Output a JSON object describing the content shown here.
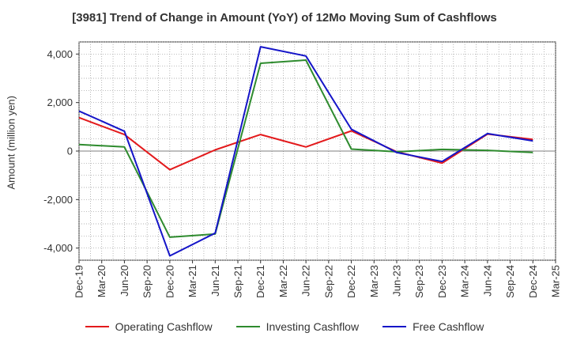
{
  "chart_data": {
    "type": "line",
    "title": "[3981]  Trend of Change in Amount (YoY) of 12Mo Moving Sum of Cashflows",
    "xlabel": "",
    "ylabel": "Amount (million yen)",
    "ylim": [
      -4500,
      4500
    ],
    "yticks": [
      4000,
      2000,
      0,
      -2000,
      -4000
    ],
    "ytick_labels": [
      "4,000",
      "2,000",
      "0",
      "-2,000",
      "-4,000"
    ],
    "categories": [
      "Dec-19",
      "Mar-20",
      "Jun-20",
      "Sep-20",
      "Dec-20",
      "Mar-21",
      "Jun-21",
      "Sep-21",
      "Dec-21",
      "Mar-22",
      "Jun-22",
      "Sep-22",
      "Dec-22",
      "Mar-23",
      "Jun-23",
      "Sep-23",
      "Dec-23",
      "Mar-24",
      "Jun-24",
      "Sep-24",
      "Dec-24",
      "Mar-25"
    ],
    "grid": true,
    "legend_position": "bottom",
    "series": [
      {
        "name": "Operating Cashflow",
        "color": "#e31a1c",
        "x": [
          "Dec-19",
          "Jun-20",
          "Dec-20",
          "Jun-21",
          "Dec-21",
          "Jun-22",
          "Dec-22",
          "Jun-23",
          "Dec-23",
          "Jun-24",
          "Dec-24"
        ],
        "values": [
          1380,
          680,
          -770,
          50,
          680,
          170,
          830,
          -30,
          -500,
          700,
          480
        ]
      },
      {
        "name": "Investing Cashflow",
        "color": "#2e8b2e",
        "x": [
          "Dec-19",
          "Jun-20",
          "Dec-20",
          "Jun-21",
          "Dec-21",
          "Jun-22",
          "Dec-22",
          "Jun-23",
          "Dec-23",
          "Jun-24",
          "Dec-24"
        ],
        "values": [
          270,
          170,
          -3550,
          -3420,
          3620,
          3750,
          80,
          -30,
          70,
          30,
          -60
        ]
      },
      {
        "name": "Free Cashflow",
        "color": "#1515c8",
        "x": [
          "Dec-19",
          "Jun-20",
          "Dec-20",
          "Jun-21",
          "Dec-21",
          "Jun-22",
          "Dec-22",
          "Jun-23",
          "Dec-23",
          "Jun-24",
          "Dec-24"
        ],
        "values": [
          1650,
          820,
          -4320,
          -3380,
          4300,
          3920,
          900,
          -60,
          -430,
          720,
          420
        ]
      }
    ]
  }
}
